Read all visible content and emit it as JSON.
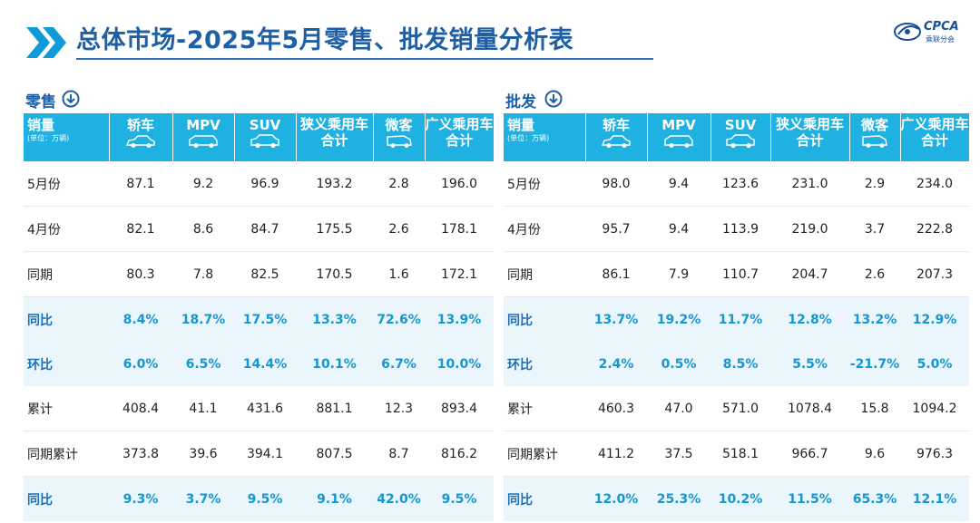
{
  "header": {
    "title": "总体市场-2025年5月零售、批发销量分析表",
    "logo_text": "CPCA",
    "logo_sub": "乘联分会"
  },
  "retail": {
    "section_label": "零售",
    "header_first": "销量",
    "header_unit": "(单位：万辆)",
    "columns": [
      "轿车",
      "MPV",
      "SUV",
      "狭义乘用车合计",
      "微客",
      "广义乘用车合计"
    ],
    "rows": [
      {
        "label": "5月份",
        "values": [
          "87.1",
          "9.2",
          "96.9",
          "193.2",
          "2.8",
          "196.0"
        ],
        "style": "plain"
      },
      {
        "label": "4月份",
        "values": [
          "82.1",
          "8.6",
          "84.7",
          "175.5",
          "2.6",
          "178.1"
        ],
        "style": "plain"
      },
      {
        "label": "同期",
        "values": [
          "80.3",
          "7.8",
          "82.5",
          "170.5",
          "1.6",
          "172.1"
        ],
        "style": "plain"
      },
      {
        "label": "同比",
        "values": [
          "8.4%",
          "18.7%",
          "17.5%",
          "13.3%",
          "72.6%",
          "13.9%"
        ],
        "style": "pct"
      },
      {
        "label": "环比",
        "values": [
          "6.0%",
          "6.5%",
          "14.4%",
          "10.1%",
          "6.7%",
          "10.0%"
        ],
        "style": "pct"
      },
      {
        "label": "累计",
        "values": [
          "408.4",
          "41.1",
          "431.6",
          "881.1",
          "12.3",
          "893.4"
        ],
        "style": "plain"
      },
      {
        "label": "同期累计",
        "values": [
          "373.8",
          "39.6",
          "394.1",
          "807.5",
          "8.7",
          "816.2"
        ],
        "style": "plain"
      },
      {
        "label": "同比",
        "values": [
          "9.3%",
          "3.7%",
          "9.5%",
          "9.1%",
          "42.0%",
          "9.5%"
        ],
        "style": "pct"
      }
    ]
  },
  "wholesale": {
    "section_label": "批发",
    "header_first": "销量",
    "header_unit": "(单位：万辆)",
    "columns": [
      "轿车",
      "MPV",
      "SUV",
      "狭义乘用车合计",
      "微客",
      "广义乘用车合计"
    ],
    "rows": [
      {
        "label": "5月份",
        "values": [
          "98.0",
          "9.4",
          "123.6",
          "231.0",
          "2.9",
          "234.0"
        ],
        "style": "plain"
      },
      {
        "label": "4月份",
        "values": [
          "95.7",
          "9.4",
          "113.9",
          "219.0",
          "3.7",
          "222.8"
        ],
        "style": "plain"
      },
      {
        "label": "同期",
        "values": [
          "86.1",
          "7.9",
          "110.7",
          "204.7",
          "2.6",
          "207.3"
        ],
        "style": "plain"
      },
      {
        "label": "同比",
        "values": [
          "13.7%",
          "19.2%",
          "11.7%",
          "12.8%",
          "13.2%",
          "12.9%"
        ],
        "style": "pct"
      },
      {
        "label": "环比",
        "values": [
          "2.4%",
          "0.5%",
          "8.5%",
          "5.5%",
          "-21.7%",
          "5.0%"
        ],
        "style": "pct"
      },
      {
        "label": "累计",
        "values": [
          "460.3",
          "47.0",
          "571.0",
          "1078.4",
          "15.8",
          "1094.2"
        ],
        "style": "plain"
      },
      {
        "label": "同期累计",
        "values": [
          "411.2",
          "37.5",
          "518.1",
          "966.7",
          "9.6",
          "976.3"
        ],
        "style": "plain"
      },
      {
        "label": "同比",
        "values": [
          "12.0%",
          "25.3%",
          "10.2%",
          "11.5%",
          "65.3%",
          "12.1%"
        ],
        "style": "pct"
      }
    ]
  },
  "icons": {
    "header": "double-chevron-right-icon",
    "section": "circle-arrow-down-icon",
    "columns": [
      "sedan-icon",
      "mpv-icon",
      "suv-icon",
      "",
      "van-icon",
      ""
    ]
  },
  "colors": {
    "title": "#1f5fa6",
    "header_bg": "#1fb1e1",
    "pct_text": "#1597cf",
    "pct_bg": "#eaf6fc"
  }
}
